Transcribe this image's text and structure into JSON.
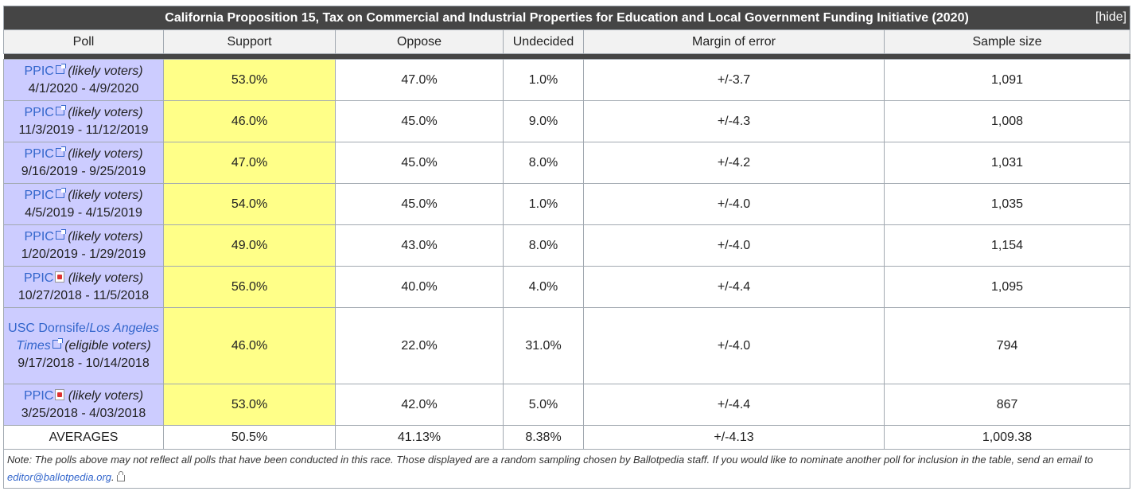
{
  "table": {
    "title": "California Proposition 15, Tax on Commercial and Industrial Properties for Education and Local Government Funding Initiative (2020)",
    "hide_label": "[hide]",
    "headers": [
      "Poll",
      "Support",
      "Oppose",
      "Undecided",
      "Margin of error",
      "Sample size"
    ],
    "rows": [
      {
        "pollster": "PPIC",
        "icon": "external-link-icon",
        "quality": "(likely voters)",
        "dates": "4/1/2020 - 4/9/2020",
        "support": "53.0%",
        "oppose": "47.0%",
        "undecided": "1.0%",
        "moe": "+/-3.7",
        "sample": "1,091"
      },
      {
        "pollster": "PPIC",
        "icon": "external-link-icon",
        "quality": "(likely voters)",
        "dates": "11/3/2019 - 11/12/2019",
        "support": "46.0%",
        "oppose": "45.0%",
        "undecided": "9.0%",
        "moe": "+/-4.3",
        "sample": "1,008"
      },
      {
        "pollster": "PPIC",
        "icon": "external-link-icon",
        "quality": "(likely voters)",
        "dates": "9/16/2019 - 9/25/2019",
        "support": "47.0%",
        "oppose": "45.0%",
        "undecided": "8.0%",
        "moe": "+/-4.2",
        "sample": "1,031"
      },
      {
        "pollster": "PPIC",
        "icon": "external-link-icon",
        "quality": "(likely voters)",
        "dates": "4/5/2019 - 4/15/2019",
        "support": "54.0%",
        "oppose": "45.0%",
        "undecided": "1.0%",
        "moe": "+/-4.0",
        "sample": "1,035"
      },
      {
        "pollster": "PPIC",
        "icon": "external-link-icon",
        "quality": "(likely voters)",
        "dates": "1/20/2019 - 1/29/2019",
        "support": "49.0%",
        "oppose": "43.0%",
        "undecided": "8.0%",
        "moe": "+/-4.0",
        "sample": "1,154"
      },
      {
        "pollster": "PPIC",
        "icon": "pdf-icon",
        "quality": "(likely voters)",
        "dates": "10/27/2018 - 11/5/2018",
        "support": "56.0%",
        "oppose": "40.0%",
        "undecided": "4.0%",
        "moe": "+/-4.4",
        "sample": "1,095"
      },
      {
        "pollster": "USC Dornsife/",
        "pollster_italic": "Los Angeles Times",
        "icon": "external-link-icon",
        "quality": "(eligible voters)",
        "dates": "9/17/2018 - 10/14/2018",
        "support": "46.0%",
        "oppose": "22.0%",
        "undecided": "31.0%",
        "moe": "+/-4.0",
        "sample": "794"
      },
      {
        "pollster": "PPIC",
        "icon": "pdf-icon",
        "quality": "(likely voters)",
        "dates": "3/25/2018 - 4/03/2018",
        "support": "53.0%",
        "oppose": "42.0%",
        "undecided": "5.0%",
        "moe": "+/-4.4",
        "sample": "867"
      }
    ],
    "averages": {
      "label": "AVERAGES",
      "support": "50.5%",
      "oppose": "41.13%",
      "undecided": "8.38%",
      "moe": "+/-4.13",
      "sample": "1,009.38"
    },
    "note": {
      "text_before": "Note: The polls above may not reflect all polls that have been conducted in this race. Those displayed are a random sampling chosen by Ballotpedia staff. If you would like to nominate another poll for inclusion in the table, send an email to ",
      "email": "editor@ballotpedia.org",
      "text_after": "."
    }
  },
  "colors": {
    "title_bg": "#454545",
    "poll_cell_bg": "#ccccff",
    "support_cell_bg": "#ffff88",
    "link": "#3366cc"
  }
}
